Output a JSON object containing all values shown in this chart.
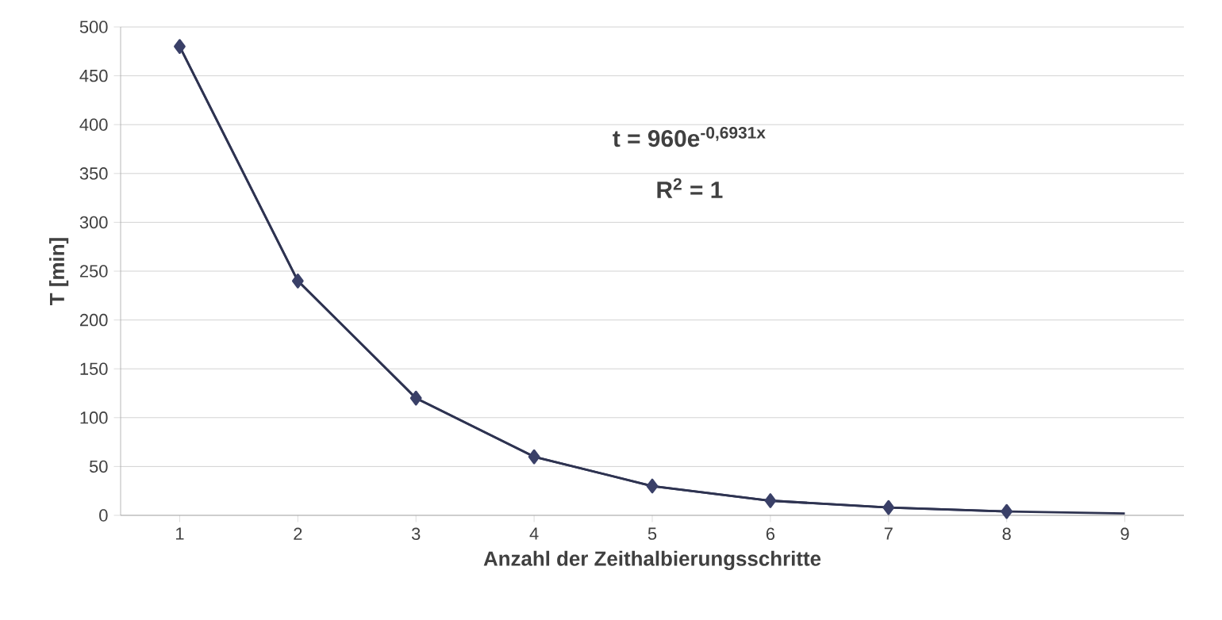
{
  "chart_data": {
    "type": "line",
    "xlabel": "Anzahl der Zeithalbierungsschritte",
    "ylabel": "T [min]",
    "categories": [
      "1",
      "2",
      "3",
      "4",
      "5",
      "6",
      "7",
      "8",
      "9"
    ],
    "series": [
      {
        "color": "#3a4068",
        "marker": "diamond",
        "values": [
          480,
          240,
          120,
          60,
          30,
          15,
          8,
          4,
          null
        ]
      },
      {
        "color": "#2e3350",
        "marker": "none",
        "values": [
          480,
          240,
          120,
          60,
          30,
          15,
          8,
          4,
          2
        ]
      }
    ],
    "ylim": [
      0,
      500
    ],
    "yticks": [
      0,
      50,
      100,
      150,
      200,
      250,
      300,
      350,
      400,
      450,
      500
    ],
    "grid": "y",
    "annotations": [
      "t = 960e$^{-0,6931x}$",
      "R$^{2}$ = 1"
    ]
  }
}
